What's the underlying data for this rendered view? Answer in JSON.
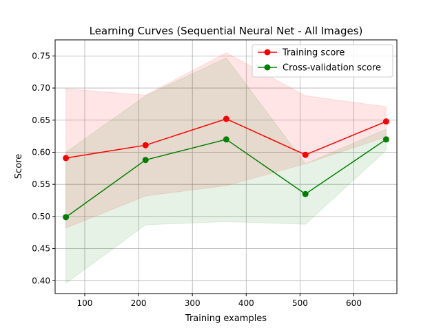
{
  "chart_data": {
    "type": "line",
    "title": "Learning Curves (Sequential Neural Net - All Images)",
    "xlabel": "Training examples",
    "ylabel": "Score",
    "xlim": [
      45,
      680
    ],
    "ylim": [
      0.38,
      0.775
    ],
    "xticks": [
      100,
      200,
      300,
      400,
      500,
      600
    ],
    "yticks": [
      0.4,
      0.45,
      0.5,
      0.55,
      0.6,
      0.65,
      0.7,
      0.75
    ],
    "grid": true,
    "legend_position": "top-right",
    "x": [
      65,
      213,
      363,
      510,
      660
    ],
    "series": [
      {
        "name": "Training score",
        "color": "#ff0000",
        "marker": "circle",
        "values": [
          0.591,
          0.611,
          0.652,
          0.596,
          0.648
        ],
        "band_upper": [
          0.699,
          0.689,
          0.755,
          0.688,
          0.671
        ],
        "band_lower": [
          0.482,
          0.532,
          0.548,
          0.582,
          0.624
        ],
        "band_color": "#ff0000"
      },
      {
        "name": "Cross-validation score",
        "color": "#008000",
        "marker": "circle",
        "values": [
          0.499,
          0.588,
          0.62,
          0.535,
          0.62
        ],
        "band_upper": [
          0.6,
          0.688,
          0.747,
          0.582,
          0.636
        ],
        "band_lower": [
          0.396,
          0.487,
          0.492,
          0.488,
          0.603
        ],
        "band_color": "#008000"
      }
    ]
  }
}
